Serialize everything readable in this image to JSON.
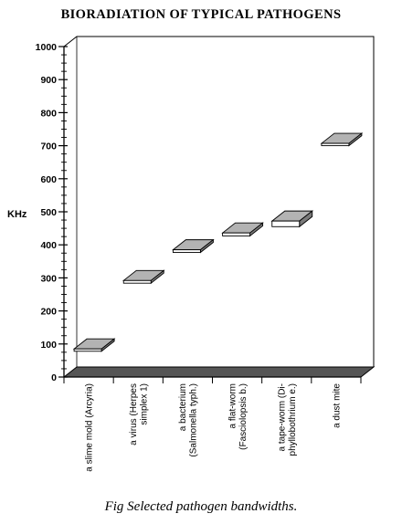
{
  "title": "BIORADIATION OF TYPICAL PATHOGENS",
  "caption": "Fig   Selected pathogen bandwidths.",
  "chart_data": {
    "type": "bar",
    "ylabel": "KHz",
    "ylim": [
      0,
      1000
    ],
    "yticks": [
      0,
      100,
      200,
      300,
      400,
      500,
      600,
      700,
      800,
      900,
      1000
    ],
    "grid": false,
    "categories": [
      [
        "a slime mold (Arcyria)"
      ],
      [
        "a virus (Herpes",
        "simplex 1)"
      ],
      [
        "a bacterium",
        "(Salmonella typh.)"
      ],
      [
        "a flat-worm",
        "(Fasciolopsis b.)"
      ],
      [
        "a tape-worm (Di-",
        "phyllobothrium e.)"
      ],
      [
        "a dust mite"
      ]
    ],
    "series": [
      {
        "low": [
          78,
          284,
          377,
          427,
          455,
          700
        ],
        "high": [
          85,
          292,
          385,
          436,
          472,
          707
        ]
      }
    ]
  },
  "colors": {
    "bar_front": "#ffffff",
    "bar_top": "#b3b3b3",
    "bar_side": "#7a7a7a",
    "floor": "#555555",
    "axis": "#000000"
  }
}
